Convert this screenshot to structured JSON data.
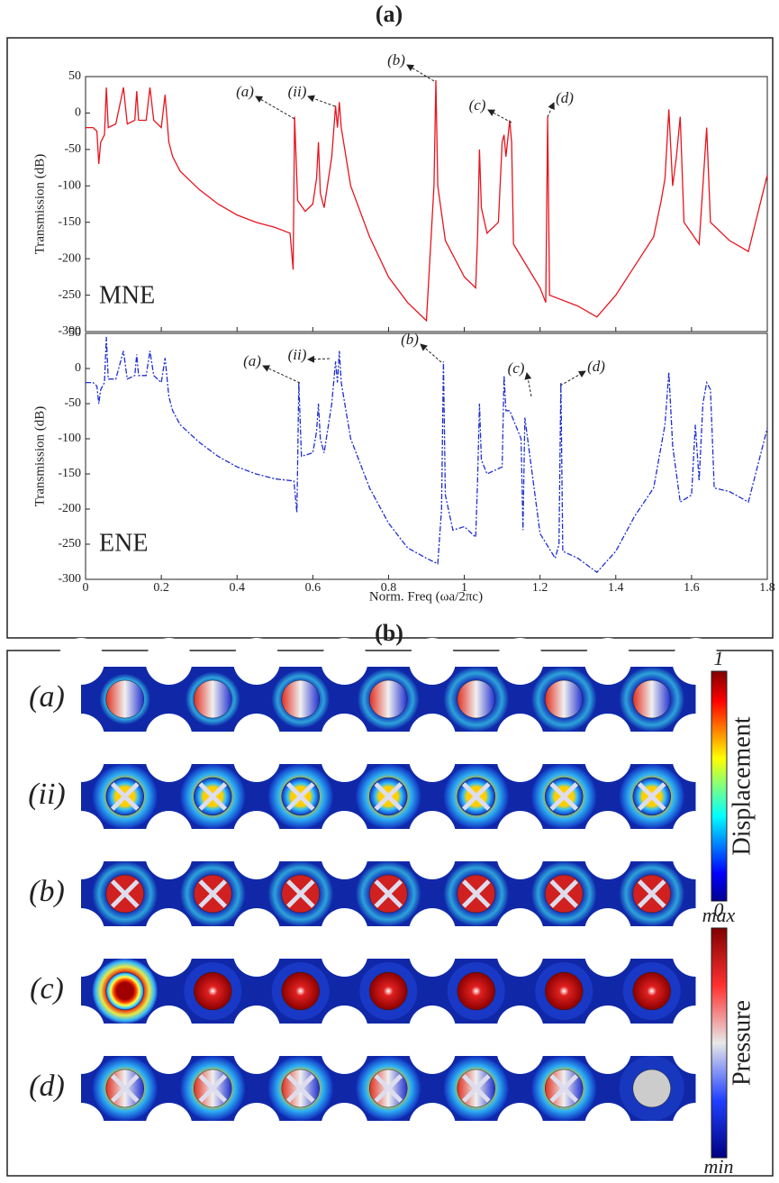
{
  "panel_a": {
    "label": "(a)",
    "xlabel": "Norm. Freq (ωa/2πc)"
  },
  "chart_data": [
    {
      "type": "line",
      "ylabel": "Transmission (dB)",
      "xlim": [
        0,
        1.8
      ],
      "xticks": [
        0,
        0.2,
        0.4,
        0.6,
        0.8,
        1,
        1.2,
        1.4,
        1.6,
        1.8
      ],
      "ylim": [
        -300,
        50
      ],
      "yticks": [
        -300,
        -250,
        -200,
        -150,
        -100,
        -50,
        0,
        50
      ],
      "annotations": [
        "(a)",
        "(ii)",
        "(b)",
        "(c)",
        "(d)"
      ],
      "series": [
        {
          "name": "MNE",
          "color": "#e8141e",
          "linestyle": "solid",
          "x": [
            0,
            0.02,
            0.03,
            0.035,
            0.04,
            0.05,
            0.055,
            0.06,
            0.08,
            0.1,
            0.11,
            0.13,
            0.135,
            0.14,
            0.16,
            0.17,
            0.18,
            0.2,
            0.21,
            0.22,
            0.23,
            0.25,
            0.3,
            0.35,
            0.4,
            0.45,
            0.5,
            0.54,
            0.548,
            0.552,
            0.56,
            0.58,
            0.6,
            0.61,
            0.615,
            0.62,
            0.63,
            0.65,
            0.66,
            0.665,
            0.67,
            0.675,
            0.7,
            0.75,
            0.8,
            0.85,
            0.9,
            0.92,
            0.925,
            0.93,
            0.95,
            1.0,
            1.03,
            1.035,
            1.04,
            1.045,
            1.06,
            1.09,
            1.1,
            1.105,
            1.11,
            1.12,
            1.125,
            1.13,
            1.2,
            1.215,
            1.22,
            1.225,
            1.3,
            1.35,
            1.4,
            1.45,
            1.5,
            1.52,
            1.53,
            1.54,
            1.55,
            1.56,
            1.57,
            1.58,
            1.6,
            1.62,
            1.63,
            1.64,
            1.65,
            1.7,
            1.75,
            1.8
          ],
          "values": [
            -20,
            -20,
            -25,
            -70,
            -40,
            -30,
            35,
            -20,
            -15,
            35,
            -15,
            -10,
            30,
            -10,
            -10,
            35,
            -10,
            -20,
            25,
            -40,
            -60,
            -80,
            -105,
            -125,
            -140,
            -150,
            -157,
            -165,
            -215,
            -5,
            -120,
            -135,
            -125,
            -90,
            -40,
            -110,
            -130,
            -60,
            10,
            -20,
            15,
            -20,
            -100,
            -170,
            -225,
            -260,
            -285,
            -100,
            45,
            -100,
            -175,
            -225,
            -240,
            -170,
            -50,
            -130,
            -165,
            -150,
            -40,
            -30,
            -60,
            -10,
            -40,
            -180,
            -240,
            -260,
            -5,
            -250,
            -265,
            -280,
            -250,
            -210,
            -170,
            -120,
            -90,
            5,
            -100,
            -60,
            -5,
            -150,
            -165,
            -180,
            -100,
            -20,
            -150,
            -175,
            -190,
            -85
          ]
        }
      ]
    },
    {
      "type": "line",
      "ylabel": "Transmission (dB)",
      "xlim": [
        0,
        1.8
      ],
      "xticks": [
        0,
        0.2,
        0.4,
        0.6,
        0.8,
        1,
        1.2,
        1.4,
        1.6,
        1.8
      ],
      "ylim": [
        -300,
        50
      ],
      "yticks": [
        -300,
        -250,
        -200,
        -150,
        -100,
        -50,
        0,
        50
      ],
      "annotations": [
        "(a)",
        "(ii)",
        "(b)",
        "(c)",
        "(d)"
      ],
      "series": [
        {
          "name": "ENE",
          "color": "#1f2fd1",
          "linestyle": "dashdot",
          "x": [
            0,
            0.02,
            0.03,
            0.035,
            0.04,
            0.05,
            0.055,
            0.06,
            0.08,
            0.1,
            0.11,
            0.13,
            0.135,
            0.14,
            0.16,
            0.17,
            0.18,
            0.2,
            0.21,
            0.22,
            0.23,
            0.25,
            0.3,
            0.35,
            0.4,
            0.45,
            0.5,
            0.55,
            0.558,
            0.563,
            0.57,
            0.6,
            0.61,
            0.615,
            0.62,
            0.63,
            0.65,
            0.66,
            0.665,
            0.67,
            0.675,
            0.7,
            0.75,
            0.8,
            0.85,
            0.9,
            0.93,
            0.94,
            0.945,
            0.95,
            0.97,
            1.0,
            1.03,
            1.035,
            1.04,
            1.045,
            1.06,
            1.1,
            1.105,
            1.11,
            1.12,
            1.15,
            1.155,
            1.16,
            1.2,
            1.24,
            1.25,
            1.255,
            1.26,
            1.3,
            1.35,
            1.4,
            1.45,
            1.5,
            1.52,
            1.53,
            1.54,
            1.55,
            1.57,
            1.6,
            1.61,
            1.62,
            1.63,
            1.64,
            1.65,
            1.66,
            1.7,
            1.75,
            1.8
          ],
          "values": [
            -20,
            -20,
            -25,
            -50,
            -30,
            -20,
            45,
            -15,
            -15,
            25,
            -15,
            -10,
            20,
            -10,
            -10,
            25,
            -10,
            -20,
            15,
            -40,
            -60,
            -80,
            -105,
            -125,
            -140,
            -150,
            -157,
            -160,
            -205,
            -20,
            -125,
            -120,
            -90,
            -50,
            -100,
            -120,
            -50,
            10,
            -20,
            25,
            -20,
            -100,
            -170,
            -220,
            -255,
            -270,
            -278,
            -200,
            10,
            -180,
            -230,
            -225,
            -240,
            -160,
            -50,
            -130,
            -150,
            -140,
            -10,
            -60,
            -60,
            -100,
            -230,
            -70,
            -235,
            -270,
            -250,
            -20,
            -260,
            -270,
            -290,
            -260,
            -210,
            -170,
            -110,
            -80,
            -5,
            -110,
            -190,
            -180,
            -80,
            -160,
            -50,
            -20,
            -30,
            -170,
            -175,
            -190,
            -85
          ]
        }
      ]
    }
  ],
  "panel_b": {
    "label": "(b)",
    "rows": [
      "(a)",
      "(ii)",
      "(b)",
      "(c)",
      "(d)"
    ],
    "colorbars": [
      {
        "title": "Displacement",
        "max": "1",
        "min": "0"
      },
      {
        "title": "Pressure",
        "max": "max",
        "min": "min"
      }
    ]
  }
}
